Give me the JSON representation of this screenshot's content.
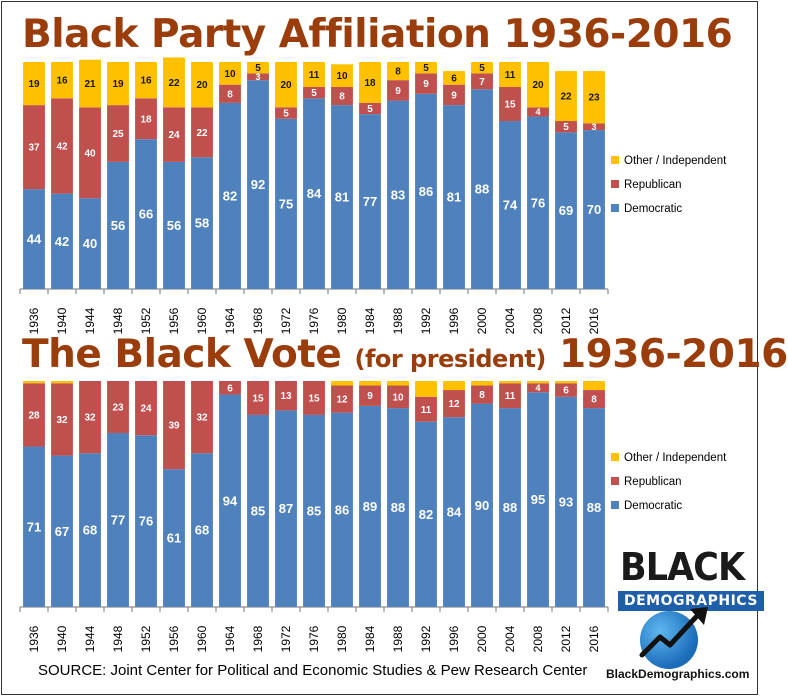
{
  "title1": "Black Party Affiliation 1936-2016",
  "title2_main": "The Black Vote",
  "title2_sub": "(for president)",
  "title2_years": "1936-2016",
  "source": "SOURCE: Joint Center for Political and Economic Studies & Pew Research Center",
  "logo": {
    "line1": "BLACK",
    "line2": "DEMOGRAPHICS",
    "url": "BlackDemographics.com"
  },
  "colors": {
    "democratic": "#4f81bd",
    "republican": "#c0504d",
    "other": "#ffc000"
  },
  "chart_data": [
    {
      "type": "bar",
      "stacked": true,
      "title": "Black Party Affiliation 1936-2016",
      "categories": [
        "1936",
        "1940",
        "1944",
        "1948",
        "1952",
        "1956",
        "1960",
        "1964",
        "1968",
        "1972",
        "1976",
        "1980",
        "1984",
        "1988",
        "1992",
        "1996",
        "2000",
        "2004",
        "2008",
        "2012",
        "2016"
      ],
      "series": [
        {
          "name": "Democratic",
          "values": [
            44,
            42,
            40,
            56,
            66,
            56,
            58,
            82,
            92,
            75,
            84,
            81,
            77,
            83,
            86,
            81,
            88,
            74,
            76,
            69,
            70
          ]
        },
        {
          "name": "Republican",
          "values": [
            37,
            42,
            40,
            25,
            18,
            24,
            22,
            8,
            3,
            5,
            5,
            8,
            5,
            9,
            9,
            9,
            7,
            15,
            4,
            5,
            3
          ]
        },
        {
          "name": "Other / Independent",
          "values": [
            19,
            16,
            21,
            19,
            16,
            22,
            20,
            10,
            5,
            20,
            11,
            10,
            18,
            8,
            5,
            6,
            5,
            11,
            20,
            22,
            23
          ]
        }
      ],
      "hidden_labels": {
        "Republican": [
          false,
          false,
          false,
          false,
          false,
          false,
          false,
          false,
          false,
          false,
          false,
          false,
          false,
          false,
          false,
          false,
          false,
          false,
          false,
          false,
          false
        ],
        "Other / Independent": [
          false,
          false,
          false,
          false,
          false,
          false,
          false,
          false,
          false,
          false,
          false,
          false,
          false,
          false,
          false,
          false,
          false,
          false,
          false,
          false,
          false
        ]
      },
      "legend": [
        "Other / Independent",
        "Republican",
        "Democratic"
      ],
      "legend_position": "right",
      "ylim": [
        0,
        100
      ]
    },
    {
      "type": "bar",
      "stacked": true,
      "title": "The Black Vote (for president) 1936-2016",
      "categories": [
        "1936",
        "1940",
        "1944",
        "1948",
        "1952",
        "1956",
        "1960",
        "1964",
        "1968",
        "1972",
        "1976",
        "1980",
        "1984",
        "1988",
        "1992",
        "1996",
        "2000",
        "2004",
        "2008",
        "2012",
        "2016"
      ],
      "series": [
        {
          "name": "Democratic",
          "values": [
            71,
            67,
            68,
            77,
            76,
            61,
            68,
            94,
            85,
            87,
            85,
            86,
            89,
            88,
            82,
            84,
            90,
            88,
            95,
            93,
            88
          ]
        },
        {
          "name": "Republican",
          "values": [
            28,
            32,
            32,
            23,
            24,
            39,
            32,
            6,
            15,
            13,
            15,
            12,
            9,
            10,
            11,
            12,
            8,
            11,
            4,
            6,
            8
          ]
        },
        {
          "name": "Other / Independent",
          "values": [
            1,
            1,
            0,
            0,
            0,
            0,
            0,
            0,
            0,
            0,
            0,
            2,
            2,
            2,
            7,
            4,
            2,
            1,
            1,
            1,
            4
          ]
        }
      ],
      "show_other_labels": false,
      "legend": [
        "Other / Independent",
        "Republican",
        "Democratic"
      ],
      "legend_position": "right",
      "ylim": [
        0,
        100
      ]
    }
  ]
}
